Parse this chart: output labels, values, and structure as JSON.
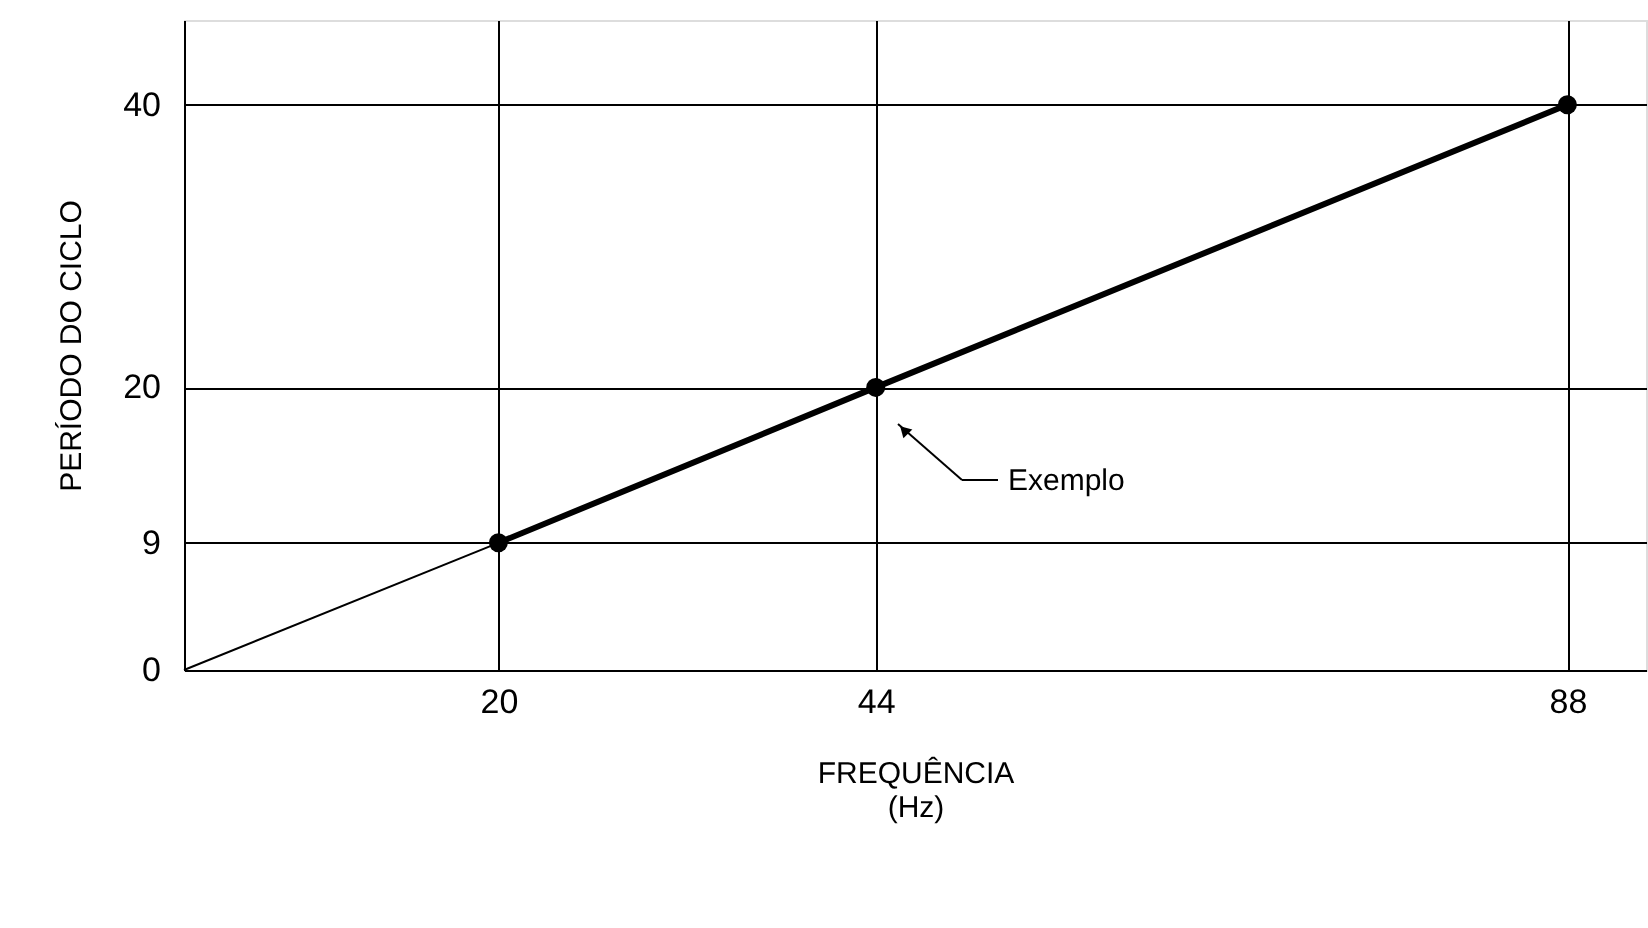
{
  "chart_data": {
    "type": "line",
    "xlabel": "FREQUÊNCIA\n(Hz)",
    "ylabel": "PERÍODO DO CICLO",
    "xlim": [
      0,
      93
    ],
    "ylim": [
      0,
      46
    ],
    "xticks": [
      20,
      44,
      88
    ],
    "yticks": [
      0,
      9,
      20,
      40
    ],
    "grid": true,
    "series": [
      {
        "color": "#000000",
        "x": [
          0,
          20
        ],
        "values": [
          0,
          9
        ]
      },
      {
        "color": "#000000",
        "x": [
          20,
          44,
          88
        ],
        "values": [
          9,
          20,
          40
        ],
        "marker": "circle"
      }
    ],
    "annotations": [
      "Exemplo"
    ]
  }
}
